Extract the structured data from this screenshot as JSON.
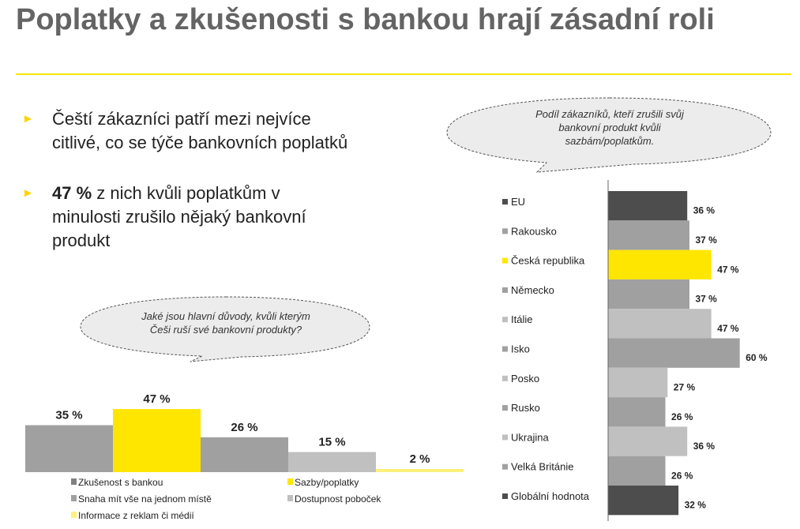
{
  "title": "Poplatky a zkušenosti s bankou hrají zásadní roli",
  "bullets": [
    {
      "lines": [
        "Čeští zákazníci patří mezi nejvíce",
        "citlivé, co se týče bankovních poplatků"
      ]
    },
    {
      "bold": "47 %",
      "lines": [
        " z nich kvůli poplatkům v",
        "minulosti zrušilo nějaký bankovní",
        "produkt"
      ]
    }
  ],
  "colors": {
    "accent": "#ffe600",
    "dark": "#4d4d4d",
    "mid": "#a0a0a0",
    "light": "#c0c0c0",
    "pale": "#fff07a"
  },
  "chart_data": [
    {
      "type": "bar",
      "orientation": "vertical",
      "title": "Jaké jsou hlavní důvody, kvůli kterým Češi ruší své bankovní produkty?",
      "title_lines": [
        "Jaké jsou hlavní důvody, kvůli kterým",
        "Češi ruší své bankovní produkty?"
      ],
      "categories": [
        "Zkušenost s bankou",
        "Sazby/poplatky",
        "Snaha mít vše na jednom místě",
        "Dostupnost poboček",
        "Informace z reklam či médií"
      ],
      "values": [
        35,
        47,
        26,
        15,
        2
      ],
      "labels": [
        "35 %",
        "47 %",
        "26 %",
        "15 %",
        "2 %"
      ],
      "colors": [
        "#a0a0a0",
        "#ffe600",
        "#a0a0a0",
        "#c0c0c0",
        "#fff07a"
      ],
      "legend_colors": [
        "#808080",
        "#ffe600",
        "#a0a0a0",
        "#c0c0c0",
        "#fff07a"
      ],
      "legend": "bottom",
      "unit": "%"
    },
    {
      "type": "bar",
      "orientation": "horizontal",
      "title": "Podíl zákazníků, kteří zrušili svůj bankovní produkt kvůli sazbám/poplatkům.",
      "title_lines": [
        "Podíl zákazníků, kteří zrušili svůj",
        "bankovní produkt kvůli",
        "sazbám/poplatkům."
      ],
      "categories": [
        "EU",
        "Rakousko",
        "Česká republika",
        "Německo",
        "Itálie",
        "Isko",
        "Posko",
        "Rusko",
        "Ukrajina",
        "Velká Británie",
        "Globální hodnota"
      ],
      "values": [
        36,
        37,
        47,
        37,
        47,
        60,
        27,
        26,
        36,
        26,
        32
      ],
      "labels": [
        "36 %",
        "37 %",
        "47 %",
        "37 %",
        "47 %",
        "60 %",
        "27 %",
        "26 %",
        "36 %",
        "26 %",
        "32 %"
      ],
      "colors": [
        "#4d4d4d",
        "#a0a0a0",
        "#ffe600",
        "#a0a0a0",
        "#c0c0c0",
        "#a0a0a0",
        "#c0c0c0",
        "#a0a0a0",
        "#c0c0c0",
        "#a0a0a0",
        "#4d4d4d"
      ],
      "legend": "left",
      "unit": "%"
    }
  ]
}
